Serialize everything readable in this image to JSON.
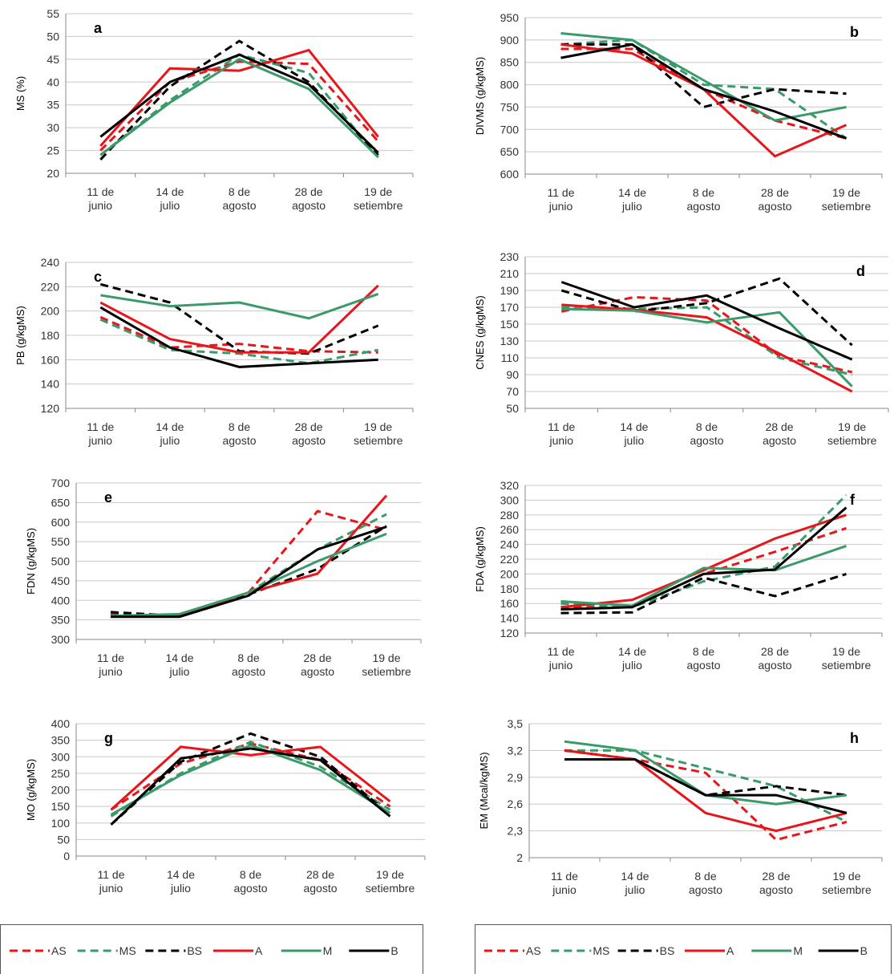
{
  "legend": [
    {
      "name": "AS",
      "color": "#e8161b",
      "dash": true
    },
    {
      "name": "MS",
      "color": "#3a9a6a",
      "dash": true
    },
    {
      "name": "BS",
      "color": "#000000",
      "dash": true
    },
    {
      "name": "A",
      "color": "#e8161b",
      "dash": false
    },
    {
      "name": "M",
      "color": "#3a9a6a",
      "dash": false
    },
    {
      "name": "B",
      "color": "#000000",
      "dash": false
    }
  ],
  "chart_data": [
    {
      "type": "line",
      "label": "a",
      "y_label": "MS (%)",
      "categories": [
        "11 de\njunio",
        "14 de\njulio",
        "8 de\nagosto",
        "28 de\nagosto",
        "19 de\nsetiembre"
      ],
      "series": [
        {
          "values": [
            25,
            40,
            44.5,
            44,
            27
          ]
        },
        {
          "values": [
            24,
            36,
            46,
            42,
            23.5
          ]
        },
        {
          "values": [
            23,
            39,
            49,
            40,
            24
          ]
        },
        {
          "values": [
            26,
            43,
            42.5,
            47,
            28
          ]
        },
        {
          "values": [
            24,
            35.5,
            45,
            38.5,
            23.5
          ]
        },
        {
          "values": [
            28,
            40,
            46,
            39.5,
            24.5
          ]
        }
      ],
      "ylim": [
        20,
        55
      ],
      "yticks": [
        20,
        25,
        30,
        35,
        40,
        45,
        50,
        55
      ],
      "grid": true
    },
    {
      "type": "line",
      "label": "b",
      "y_label": "DIVMS (g/kgMS)",
      "categories": [
        "11 de\njunio",
        "14 de\njulio",
        "8 de\nagosto",
        "28 de\nagosto",
        "19 de\nsetiembre"
      ],
      "series": [
        {
          "values": [
            880,
            880,
            790,
            720,
            680
          ]
        },
        {
          "values": [
            890,
            900,
            800,
            790,
            680
          ]
        },
        {
          "values": [
            890,
            890,
            750,
            790,
            780
          ]
        },
        {
          "values": [
            890,
            870,
            790,
            640,
            710
          ]
        },
        {
          "values": [
            915,
            900,
            810,
            720,
            750
          ]
        },
        {
          "values": [
            860,
            890,
            790,
            740,
            680
          ]
        }
      ],
      "ylim": [
        600,
        950
      ],
      "yticks": [
        600,
        650,
        700,
        750,
        800,
        850,
        900,
        950
      ],
      "grid": true
    },
    {
      "type": "line",
      "label": "c",
      "y_label": "PB (g/kgMS)",
      "categories": [
        "11 de\njunio",
        "14 de\njulio",
        "8 de\nagosto",
        "28 de\nagosto",
        "19 de\nsetiembre"
      ],
      "series": [
        {
          "values": [
            195,
            170,
            173,
            167,
            166
          ]
        },
        {
          "values": [
            193,
            168,
            165,
            157,
            168
          ]
        },
        {
          "values": [
            222,
            207,
            167,
            165,
            188
          ]
        },
        {
          "values": [
            207,
            177,
            166,
            166,
            221
          ]
        },
        {
          "values": [
            213,
            204,
            207,
            194,
            214
          ]
        },
        {
          "values": [
            203,
            170,
            154,
            157,
            160
          ]
        }
      ],
      "ylim": [
        120,
        240
      ],
      "yticks": [
        120,
        140,
        160,
        180,
        200,
        220,
        240
      ],
      "grid": true
    },
    {
      "type": "line",
      "label": "d",
      "y_label": "CNES (g/kgMS)",
      "categories": [
        "11 de\njunio",
        "14 de\njulio",
        "8 de\nagosto",
        "28 de\nagosto",
        "19 de\nsetiembre"
      ],
      "series": [
        {
          "values": [
            165,
            182,
            178,
            112,
            93
          ]
        },
        {
          "values": [
            170,
            168,
            170,
            110,
            90
          ]
        },
        {
          "values": [
            190,
            165,
            175,
            204,
            125
          ]
        },
        {
          "values": [
            173,
            167,
            158,
            115,
            70
          ]
        },
        {
          "values": [
            168,
            166,
            152,
            164,
            76
          ]
        },
        {
          "values": [
            200,
            170,
            184,
            145,
            108
          ]
        }
      ],
      "ylim": [
        50,
        230
      ],
      "yticks": [
        50,
        70,
        90,
        110,
        130,
        150,
        170,
        190,
        210,
        230
      ],
      "grid": true
    },
    {
      "type": "line",
      "label": "e",
      "y_label": "FDN  (g/kgMS)",
      "categories": [
        "11 de\njunio",
        "14 de\njulio",
        "8 de\nagosto",
        "28 de\nagosto",
        "19 de\nsetiembre"
      ],
      "series": [
        {
          "values": [
            365,
            360,
            420,
            628,
            580
          ]
        },
        {
          "values": [
            360,
            360,
            420,
            530,
            620
          ]
        },
        {
          "values": [
            370,
            360,
            415,
            480,
            590
          ]
        },
        {
          "values": [
            360,
            360,
            420,
            468,
            668
          ]
        },
        {
          "values": [
            360,
            365,
            420,
            500,
            570
          ]
        },
        {
          "values": [
            358,
            358,
            412,
            530,
            588
          ]
        }
      ],
      "ylim": [
        300,
        700
      ],
      "yticks": [
        300,
        350,
        400,
        450,
        500,
        550,
        600,
        650,
        700
      ],
      "grid": true
    },
    {
      "type": "line",
      "label": "f",
      "y_label": "FDA (g/kgMS)",
      "categories": [
        "11 de\njunio",
        "14 de\njulio",
        "8 de\nagosto",
        "28 de\nagosto",
        "19 de\nsetiembre"
      ],
      "series": [
        {
          "values": [
            155,
            155,
            200,
            230,
            262
          ]
        },
        {
          "values": [
            160,
            155,
            190,
            210,
            307
          ]
        },
        {
          "values": [
            147,
            148,
            195,
            170,
            200
          ]
        },
        {
          "values": [
            155,
            165,
            205,
            248,
            280
          ]
        },
        {
          "values": [
            163,
            157,
            208,
            205,
            238
          ]
        },
        {
          "values": [
            152,
            155,
            200,
            206,
            290
          ]
        }
      ],
      "ylim": [
        120,
        320
      ],
      "yticks": [
        120,
        140,
        160,
        180,
        200,
        220,
        240,
        260,
        280,
        300,
        320
      ],
      "grid": true
    },
    {
      "type": "line",
      "label": "g",
      "y_label": "MO (g/kgMS)",
      "categories": [
        "11 de\njunio",
        "14 de\njulio",
        "8 de\nagosto",
        "28 de\nagosto",
        "19 de\nsetiembre"
      ],
      "series": [
        {
          "values": [
            140,
            280,
            340,
            290,
            150
          ]
        },
        {
          "values": [
            120,
            250,
            345,
            270,
            140
          ]
        },
        {
          "values": [
            95,
            285,
            370,
            300,
            125
          ]
        },
        {
          "values": [
            140,
            330,
            305,
            330,
            165
          ]
        },
        {
          "values": [
            125,
            245,
            335,
            260,
            130
          ]
        },
        {
          "values": [
            95,
            295,
            325,
            290,
            120
          ]
        }
      ],
      "ylim": [
        0,
        400
      ],
      "yticks": [
        0,
        50,
        100,
        150,
        200,
        250,
        300,
        350,
        400
      ],
      "grid": true
    },
    {
      "type": "line",
      "label": "h",
      "y_label": "EM (Mcal/kgMS)",
      "categories": [
        "11 de\njunio",
        "14 de\njulio",
        "8 de\nagosto",
        "28 de\nagosto",
        "19 de\nsetiembre"
      ],
      "series": [
        {
          "values": [
            3.2,
            3.1,
            2.95,
            2.2,
            2.4
          ]
        },
        {
          "values": [
            3.2,
            3.2,
            3.0,
            2.8,
            2.4
          ]
        },
        {
          "values": [
            3.2,
            3.1,
            2.7,
            2.8,
            2.7
          ]
        },
        {
          "values": [
            3.2,
            3.1,
            2.5,
            2.3,
            2.5
          ]
        },
        {
          "values": [
            3.3,
            3.2,
            2.7,
            2.6,
            2.7
          ]
        },
        {
          "values": [
            3.1,
            3.1,
            2.7,
            2.7,
            2.5
          ]
        }
      ],
      "ylim": [
        2,
        3.5
      ],
      "yticks": [
        2,
        {
          "value": 2.3,
          "label": "2,3"
        },
        {
          "value": 2.6,
          "label": "2,6"
        },
        {
          "value": 2.9,
          "label": "2,9"
        },
        {
          "value": 3.2,
          "label": "3,2"
        },
        {
          "value": 3.5,
          "label": "3,5"
        }
      ],
      "grid": true
    }
  ]
}
